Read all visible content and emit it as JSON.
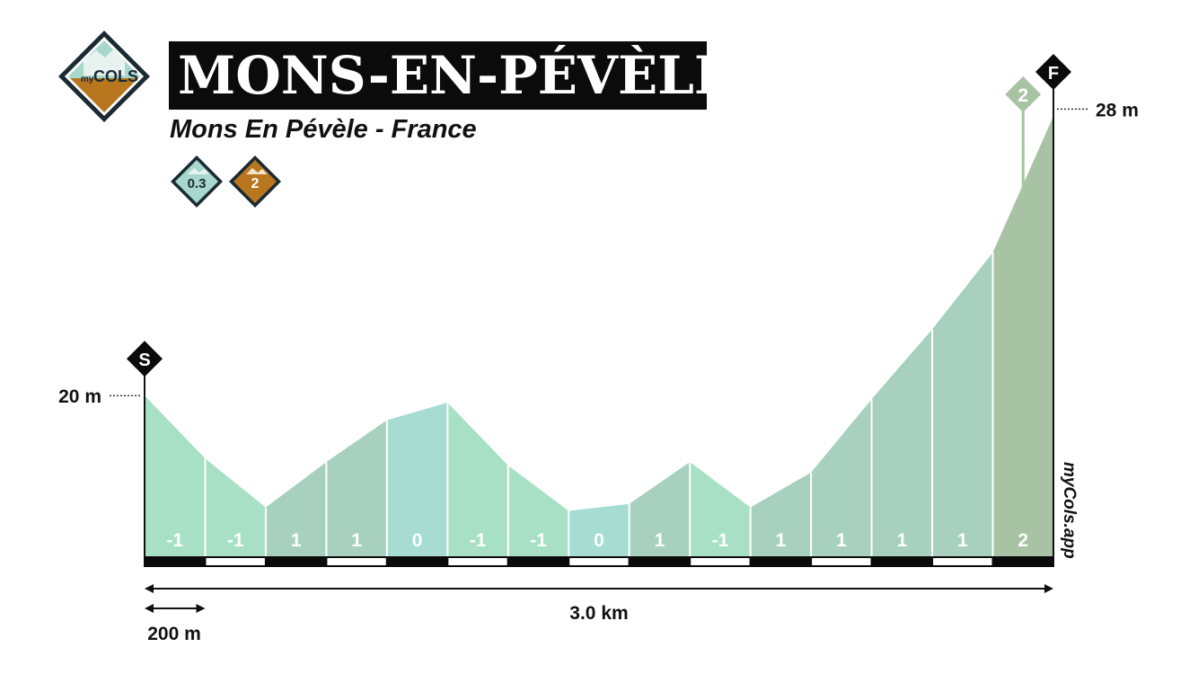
{
  "title": "MONS-EN-PÉVÈLE",
  "subtitle": "Mons En Pévèle - France",
  "logo": {
    "prefix": "my",
    "word": "COLS"
  },
  "badges": [
    {
      "label": "0.3",
      "color": "#a8d8cc"
    },
    {
      "label": "2",
      "color": "#b8761f"
    }
  ],
  "markers": {
    "start": "S",
    "finish": "F"
  },
  "brand": "myCols.app",
  "colors": {
    "grade_neg": "#a8e0c6",
    "grade_0": "#a6dcd2",
    "grade_1": "#a7d1be",
    "grade_2": "#a8c3a4",
    "line": "#111111",
    "text_on_fill": "#ffffff"
  },
  "chart_data": {
    "type": "area",
    "total_distance_label": "3.0 km",
    "scale_label": "200 m",
    "x_unit": "km",
    "y_unit": "m",
    "start_elevation_label": "20 m",
    "finish_elevation_label": "28 m",
    "climb_marker": {
      "label": "2",
      "x": 2.9
    },
    "x": [
      0,
      0.2,
      0.4,
      0.6,
      0.8,
      1.0,
      1.2,
      1.4,
      1.6,
      1.8,
      2.0,
      2.2,
      2.4,
      2.6,
      2.8,
      3.0
    ],
    "elevation": [
      20,
      18.2,
      16.8,
      18.1,
      19.3,
      19.8,
      18.0,
      16.7,
      16.9,
      18.1,
      16.8,
      17.8,
      19.9,
      21.9,
      24.1,
      28
    ],
    "segment_grades": [
      "-1",
      "-1",
      "1",
      "1",
      "0",
      "-1",
      "-1",
      "0",
      "1",
      "-1",
      "1",
      "1",
      "1",
      "1",
      "2"
    ],
    "segment_colors": [
      "neg",
      "neg",
      "1",
      "1",
      "0",
      "neg",
      "neg",
      "0",
      "1",
      "neg",
      "1",
      "1",
      "1",
      "1",
      "2"
    ],
    "ylim": [
      15.4,
      30.3
    ]
  }
}
